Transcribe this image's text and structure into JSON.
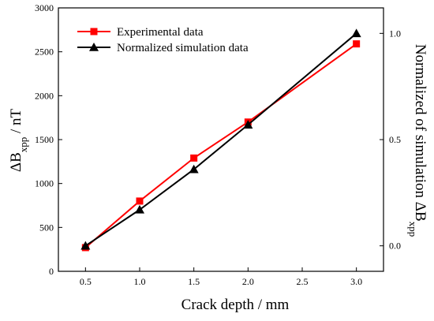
{
  "chart_data": {
    "type": "line",
    "x": [
      0.5,
      1.0,
      1.5,
      2.0,
      3.0
    ],
    "xlabel": "Crack depth / mm",
    "x_ticks": [
      "0.5",
      "1.0",
      "1.5",
      "2.0",
      "2.5",
      "3.0"
    ],
    "xlim": [
      0.25,
      3.25
    ],
    "ylabel_left": {
      "base": "ΔB",
      "sub": "xpp",
      "unit": " / nT"
    },
    "ylim_left": [
      0,
      3000
    ],
    "y_left_ticks": [
      "0",
      "500",
      "1000",
      "1500",
      "2000",
      "2500",
      "3000"
    ],
    "ylabel_right": {
      "base": "Normalized of simulation ΔB",
      "sub": "xpp"
    },
    "ylim_right": [
      -0.12,
      1.12
    ],
    "y_right_ticks": [
      "0.0",
      "0.5",
      "1.0"
    ],
    "series": [
      {
        "name": "Experimental data",
        "axis": "left",
        "color": "#ff0000",
        "marker": "square",
        "values": [
          270,
          800,
          1290,
          1700,
          2590
        ]
      },
      {
        "name": "Normalized simulation data",
        "axis": "right",
        "color": "#000000",
        "marker": "triangle",
        "values": [
          0.0,
          0.17,
          0.36,
          0.57,
          1.0
        ]
      }
    ],
    "legend_position": "top-left",
    "grid": false
  }
}
